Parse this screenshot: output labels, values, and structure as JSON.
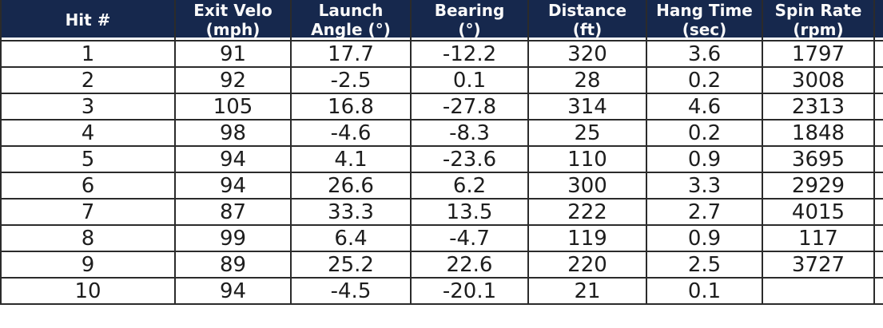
{
  "chart_data": {
    "type": "table",
    "columns": [
      {
        "key": "hit_number",
        "label": "Hit #"
      },
      {
        "key": "exit_velo",
        "label": "Exit Velo\n(mph)"
      },
      {
        "key": "launch_angle",
        "label": "Launch\nAngle (°)"
      },
      {
        "key": "bearing",
        "label": "Bearing\n(°)"
      },
      {
        "key": "distance",
        "label": "Distance\n(ft)"
      },
      {
        "key": "hang_time",
        "label": "Hang Time\n(sec)"
      },
      {
        "key": "spin_rate",
        "label": "Spin Rate\n(rpm)"
      }
    ],
    "rows": [
      [
        "1",
        "91",
        "17.7",
        "-12.2",
        "320",
        "3.6",
        "1797"
      ],
      [
        "2",
        "92",
        "-2.5",
        "0.1",
        "28",
        "0.2",
        "3008"
      ],
      [
        "3",
        "105",
        "16.8",
        "-27.8",
        "314",
        "4.6",
        "2313"
      ],
      [
        "4",
        "98",
        "-4.6",
        "-8.3",
        "25",
        "0.2",
        "1848"
      ],
      [
        "5",
        "94",
        "4.1",
        "-23.6",
        "110",
        "0.9",
        "3695"
      ],
      [
        "6",
        "94",
        "26.6",
        "6.2",
        "300",
        "3.3",
        "2929"
      ],
      [
        "7",
        "87",
        "33.3",
        "13.5",
        "222",
        "2.7",
        "4015"
      ],
      [
        "8",
        "99",
        "6.4",
        "-4.7",
        "119",
        "0.9",
        "117"
      ],
      [
        "9",
        "89",
        "25.2",
        "22.6",
        "220",
        "2.5",
        "3727"
      ],
      [
        "10",
        "94",
        "-4.5",
        "-20.1",
        "21",
        "0.1",
        ""
      ]
    ]
  },
  "colors": {
    "header_bg": "#16284d",
    "header_text": "#fafafa",
    "body_text": "#1d1d1d",
    "border": "#2b2b2b",
    "row_bg": "#ffffff"
  }
}
